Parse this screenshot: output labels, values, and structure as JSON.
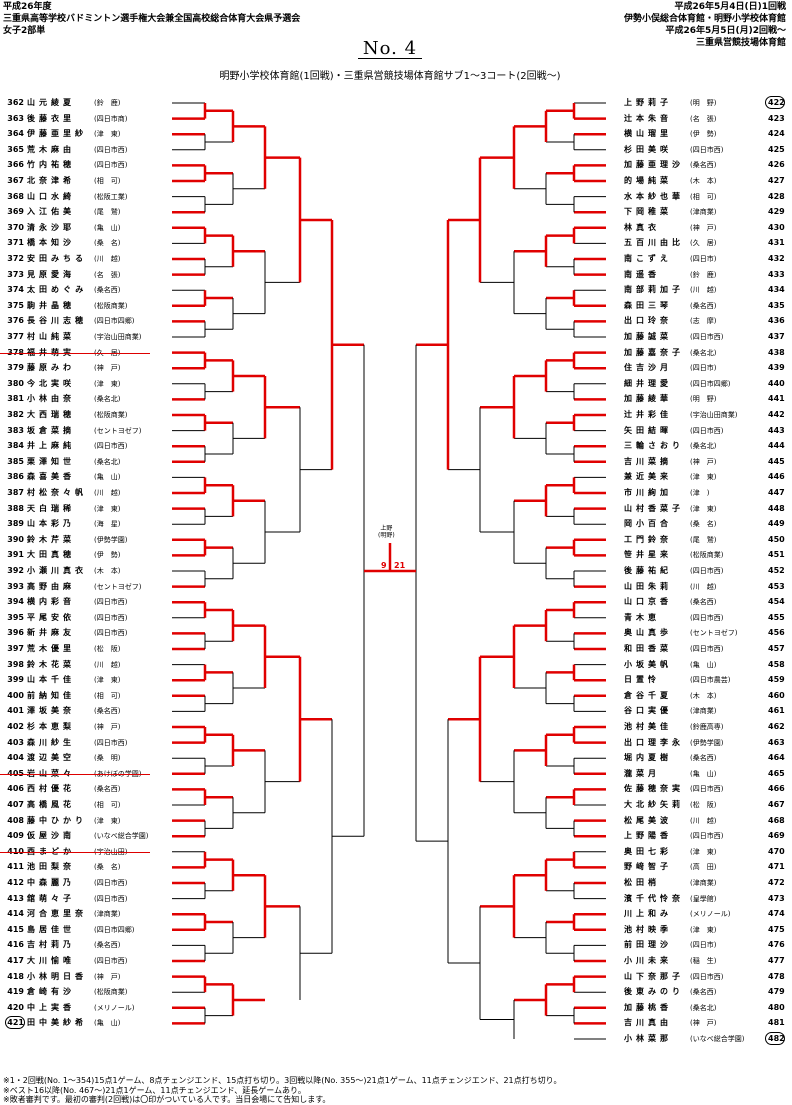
{
  "header": {
    "era": "平成26年度",
    "event": "三重県高等学校バドミントン選手権大会兼全国高校総合体育大会県予選会",
    "division": "女子2部単",
    "date1": "平成26年5月4日(日)1回戦",
    "venue1": "伊勢小俣総合体育館・明野小学校体育館",
    "date2": "平成26年5月5日(月)2回戦〜",
    "venue2": "三重県営競技場体育館"
  },
  "title": "No. 4",
  "subtitle": "明野小学校体育館(1回戦)・三重県営競技場体育館サブ1〜3コート(2回戦〜)",
  "footer": [
    "※1・2回戦(No. 1〜354)15点1ゲーム、8点チェンジエンド、15点打ち切り。3回戦以降(No. 355〜)21点1ゲーム、11点チェンジエンド、21点打ち切り。",
    "※ベスト16以降(No. 467〜)21点1ゲーム、11点チェンジエンド、延長ゲームあり。",
    "※敗者審判です。最初の審判(2回戦)は〇印がついている人です。当日会場にて告知します。"
  ],
  "center_label": "上野\n(明野)",
  "center_score_left": "9",
  "center_score_right": "21",
  "colors": {
    "line": "#000000",
    "win": "#e00000"
  },
  "left_players": [
    {
      "no": "362",
      "name": "山元綾夏",
      "school": "(鈴　鹿)"
    },
    {
      "no": "363",
      "name": "後藤衣里",
      "school": "(四日市商)"
    },
    {
      "no": "364",
      "name": "伊藤亜里紗",
      "school": "(津　東)"
    },
    {
      "no": "365",
      "name": "荒木麻由",
      "school": "(四日市西)"
    },
    {
      "no": "366",
      "name": "竹内祐穂",
      "school": "(四日市西)"
    },
    {
      "no": "367",
      "name": "北奈津希",
      "school": "(相　可)"
    },
    {
      "no": "368",
      "name": "山口水綺",
      "school": "(松阪工業)"
    },
    {
      "no": "369",
      "name": "入江佑美",
      "school": "(尾　鷲)"
    },
    {
      "no": "370",
      "name": "清永沙耶",
      "school": "(亀　山)"
    },
    {
      "no": "371",
      "name": "橋本知沙",
      "school": "(桑　名)"
    },
    {
      "no": "372",
      "name": "安田みちる",
      "school": "(川　越)"
    },
    {
      "no": "373",
      "name": "見原愛海",
      "school": "(名　張)"
    },
    {
      "no": "374",
      "name": "太田めぐみ",
      "school": "(桑名西)"
    },
    {
      "no": "375",
      "name": "駒井晶穂",
      "school": "(松阪商業)"
    },
    {
      "no": "376",
      "name": "長谷川志穂",
      "school": "(四日市四郷)"
    },
    {
      "no": "377",
      "name": "村山純菜",
      "school": "(宇治山田商業)"
    },
    {
      "no": "378",
      "name": "福井萌実",
      "school": "(久　居)",
      "strike": true
    },
    {
      "no": "379",
      "name": "藤原みわ",
      "school": "(神　戸)"
    },
    {
      "no": "380",
      "name": "今北実咲",
      "school": "(津　東)"
    },
    {
      "no": "381",
      "name": "小林由奈",
      "school": "(桑名北)"
    },
    {
      "no": "382",
      "name": "大西瑞穂",
      "school": "(松阪商業)"
    },
    {
      "no": "383",
      "name": "坂倉菜摘",
      "school": "(セントヨゼフ)"
    },
    {
      "no": "384",
      "name": "井上麻純",
      "school": "(四日市西)"
    },
    {
      "no": "385",
      "name": "栗澤知世",
      "school": "(桑名北)"
    },
    {
      "no": "386",
      "name": "森喜美香",
      "school": "(亀　山)"
    },
    {
      "no": "387",
      "name": "村松奈々帆",
      "school": "(川　越)"
    },
    {
      "no": "388",
      "name": "天白瑞稀",
      "school": "(津　東)"
    },
    {
      "no": "389",
      "name": "山本彩乃",
      "school": "(海　星)"
    },
    {
      "no": "390",
      "name": "鈴木芹菜",
      "school": "(伊勢学園)"
    },
    {
      "no": "391",
      "name": "大田真穂",
      "school": "(伊　勢)"
    },
    {
      "no": "392",
      "name": "小瀬川真衣",
      "school": "(木　本)"
    },
    {
      "no": "393",
      "name": "高野由麻",
      "school": "(セントヨゼフ)"
    },
    {
      "no": "394",
      "name": "横内彩音",
      "school": "(四日市西)"
    },
    {
      "no": "395",
      "name": "平尾安依",
      "school": "(四日市西)"
    },
    {
      "no": "396",
      "name": "新井麻友",
      "school": "(四日市西)"
    },
    {
      "no": "397",
      "name": "荒木優里",
      "school": "(松　阪)"
    },
    {
      "no": "398",
      "name": "鈴木花菜",
      "school": "(川　越)"
    },
    {
      "no": "399",
      "name": "山本千佳",
      "school": "(津　東)"
    },
    {
      "no": "400",
      "name": "前納知佳",
      "school": "(相　可)"
    },
    {
      "no": "401",
      "name": "澤坂美奈",
      "school": "(桑名西)"
    },
    {
      "no": "402",
      "name": "杉本恵梨",
      "school": "(神　戸)"
    },
    {
      "no": "403",
      "name": "森川紗生",
      "school": "(四日市西)"
    },
    {
      "no": "404",
      "name": "渡辺美空",
      "school": "(桑　明)"
    },
    {
      "no": "405",
      "name": "岩山菜々",
      "school": "(あけぼの学園)",
      "strike": true
    },
    {
      "no": "406",
      "name": "西村優花",
      "school": "(桑名西)"
    },
    {
      "no": "407",
      "name": "高橋風花",
      "school": "(相　可)"
    },
    {
      "no": "408",
      "name": "藤中ひかり",
      "school": "(津　東)"
    },
    {
      "no": "409",
      "name": "仮屋沙南",
      "school": "(いなべ総合学園)"
    },
    {
      "no": "410",
      "name": "西まどか",
      "school": "(宇治山田)",
      "strike": true
    },
    {
      "no": "411",
      "name": "池田梨奈",
      "school": "(桑　名)"
    },
    {
      "no": "412",
      "name": "中森麗乃",
      "school": "(四日市西)"
    },
    {
      "no": "413",
      "name": "舘萌々子",
      "school": "(四日市西)"
    },
    {
      "no": "414",
      "name": "河合恵里奈",
      "school": "(津商業)"
    },
    {
      "no": "415",
      "name": "島居佳世",
      "school": "(四日市四郷)"
    },
    {
      "no": "416",
      "name": "吉村莉乃",
      "school": "(桑名西)"
    },
    {
      "no": "417",
      "name": "大川愉唯",
      "school": "(四日市西)"
    },
    {
      "no": "418",
      "name": "小林明日香",
      "school": "(神　戸)"
    },
    {
      "no": "419",
      "name": "倉崎有沙",
      "school": "(松阪商業)"
    },
    {
      "no": "420",
      "name": "中上実香",
      "school": "(メリノール)"
    },
    {
      "no": "421",
      "name": "田中美紗希",
      "school": "(亀　山)",
      "circle": true
    }
  ],
  "right_players": [
    {
      "no": "422",
      "name": "上野莉子",
      "school": "(明　野)",
      "circle": true
    },
    {
      "no": "423",
      "name": "辻本朱音",
      "school": "(名　張)"
    },
    {
      "no": "424",
      "name": "横山瑠里",
      "school": "(伊　勢)"
    },
    {
      "no": "425",
      "name": "杉田美咲",
      "school": "(四日市西)"
    },
    {
      "no": "426",
      "name": "加藤亜理沙",
      "school": "(桑名西)"
    },
    {
      "no": "427",
      "name": "的場純菜",
      "school": "(木　本)"
    },
    {
      "no": "428",
      "name": "水本紗也華",
      "school": "(相　可)"
    },
    {
      "no": "429",
      "name": "下岡稚菜",
      "school": "(津商業)"
    },
    {
      "no": "430",
      "name": "林真衣",
      "school": "(神　戸)"
    },
    {
      "no": "431",
      "name": "五百川由比",
      "school": "(久　居)"
    },
    {
      "no": "432",
      "name": "南こずえ",
      "school": "(四日市)"
    },
    {
      "no": "433",
      "name": "南遥香",
      "school": "(鈴　鹿)"
    },
    {
      "no": "434",
      "name": "南部莉加子",
      "school": "(川　越)"
    },
    {
      "no": "435",
      "name": "森田三琴",
      "school": "(桑名西)"
    },
    {
      "no": "436",
      "name": "出口玲奈",
      "school": "(志　摩)"
    },
    {
      "no": "437",
      "name": "加藤誠菜",
      "school": "(四日市西)"
    },
    {
      "no": "438",
      "name": "加藤嘉奈子",
      "school": "(桑名北)"
    },
    {
      "no": "439",
      "name": "住吉沙月",
      "school": "(四日市)"
    },
    {
      "no": "440",
      "name": "細井理愛",
      "school": "(四日市四郷)"
    },
    {
      "no": "441",
      "name": "加藤綾華",
      "school": "(明　野)"
    },
    {
      "no": "442",
      "name": "辻井彩佳",
      "school": "(宇治山田商業)"
    },
    {
      "no": "443",
      "name": "矢田結暉",
      "school": "(四日市西)"
    },
    {
      "no": "444",
      "name": "三輪さおり",
      "school": "(桑名北)"
    },
    {
      "no": "445",
      "name": "吉川菜摘",
      "school": "(神　戸)"
    },
    {
      "no": "446",
      "name": "兼近美来",
      "school": "(津　東)"
    },
    {
      "no": "447",
      "name": "市川絢加",
      "school": "(津　)"
    },
    {
      "no": "448",
      "name": "山村香菜子",
      "school": "(津　東)"
    },
    {
      "no": "449",
      "name": "岡小百合",
      "school": "(桑　名)"
    },
    {
      "no": "450",
      "name": "工門鈴奈",
      "school": "(尾　鷲)"
    },
    {
      "no": "451",
      "name": "笹井星来",
      "school": "(松阪商業)"
    },
    {
      "no": "452",
      "name": "後藤祐紀",
      "school": "(四日市西)"
    },
    {
      "no": "453",
      "name": "山田朱莉",
      "school": "(川　越)"
    },
    {
      "no": "454",
      "name": "山口京香",
      "school": "(桑名西)"
    },
    {
      "no": "455",
      "name": "青木恵",
      "school": "(四日市西)"
    },
    {
      "no": "456",
      "name": "奥山真歩",
      "school": "(セントヨゼフ)"
    },
    {
      "no": "457",
      "name": "和田香菜",
      "school": "(四日市西)"
    },
    {
      "no": "458",
      "name": "小坂美帆",
      "school": "(亀　山)"
    },
    {
      "no": "459",
      "name": "日置怜",
      "school": "(四日市農芸)"
    },
    {
      "no": "460",
      "name": "倉谷千夏",
      "school": "(木　本)"
    },
    {
      "no": "461",
      "name": "谷口実優",
      "school": "(津商業)"
    },
    {
      "no": "462",
      "name": "池村美佳",
      "school": "(鈴鹿高専)"
    },
    {
      "no": "463",
      "name": "出口理李永",
      "school": "(伊勢学園)"
    },
    {
      "no": "464",
      "name": "堀内夏樹",
      "school": "(桑名西)"
    },
    {
      "no": "465",
      "name": "瀧菜月",
      "school": "(亀　山)"
    },
    {
      "no": "466",
      "name": "佐藤穂奈実",
      "school": "(四日市西)"
    },
    {
      "no": "467",
      "name": "大北紗矢莉",
      "school": "(松　阪)"
    },
    {
      "no": "468",
      "name": "松尾美波",
      "school": "(川　越)"
    },
    {
      "no": "469",
      "name": "上野陽香",
      "school": "(四日市西)"
    },
    {
      "no": "470",
      "name": "奥田七彩",
      "school": "(津　東)"
    },
    {
      "no": "471",
      "name": "野﨑智子",
      "school": "(高　田)"
    },
    {
      "no": "472",
      "name": "松田梢",
      "school": "(津商業)"
    },
    {
      "no": "473",
      "name": "濱千代怜奈",
      "school": "(皇學館)"
    },
    {
      "no": "474",
      "name": "川上和み",
      "school": "(メリノール)"
    },
    {
      "no": "475",
      "name": "池村映季",
      "school": "(津　東)"
    },
    {
      "no": "476",
      "name": "前田理沙",
      "school": "(四日市)"
    },
    {
      "no": "477",
      "name": "小川未来",
      "school": "(稲　生)"
    },
    {
      "no": "478",
      "name": "山下奈那子",
      "school": "(四日市西)"
    },
    {
      "no": "479",
      "name": "後東みのり",
      "school": "(桑名西)"
    },
    {
      "no": "480",
      "name": "加藤桃香",
      "school": "(桑名北)"
    },
    {
      "no": "481",
      "name": "吉川真由",
      "school": "(神　戸)"
    },
    {
      "no": "482",
      "name": "小林菜那",
      "school": "(いなべ総合学園)",
      "circle": true
    }
  ]
}
